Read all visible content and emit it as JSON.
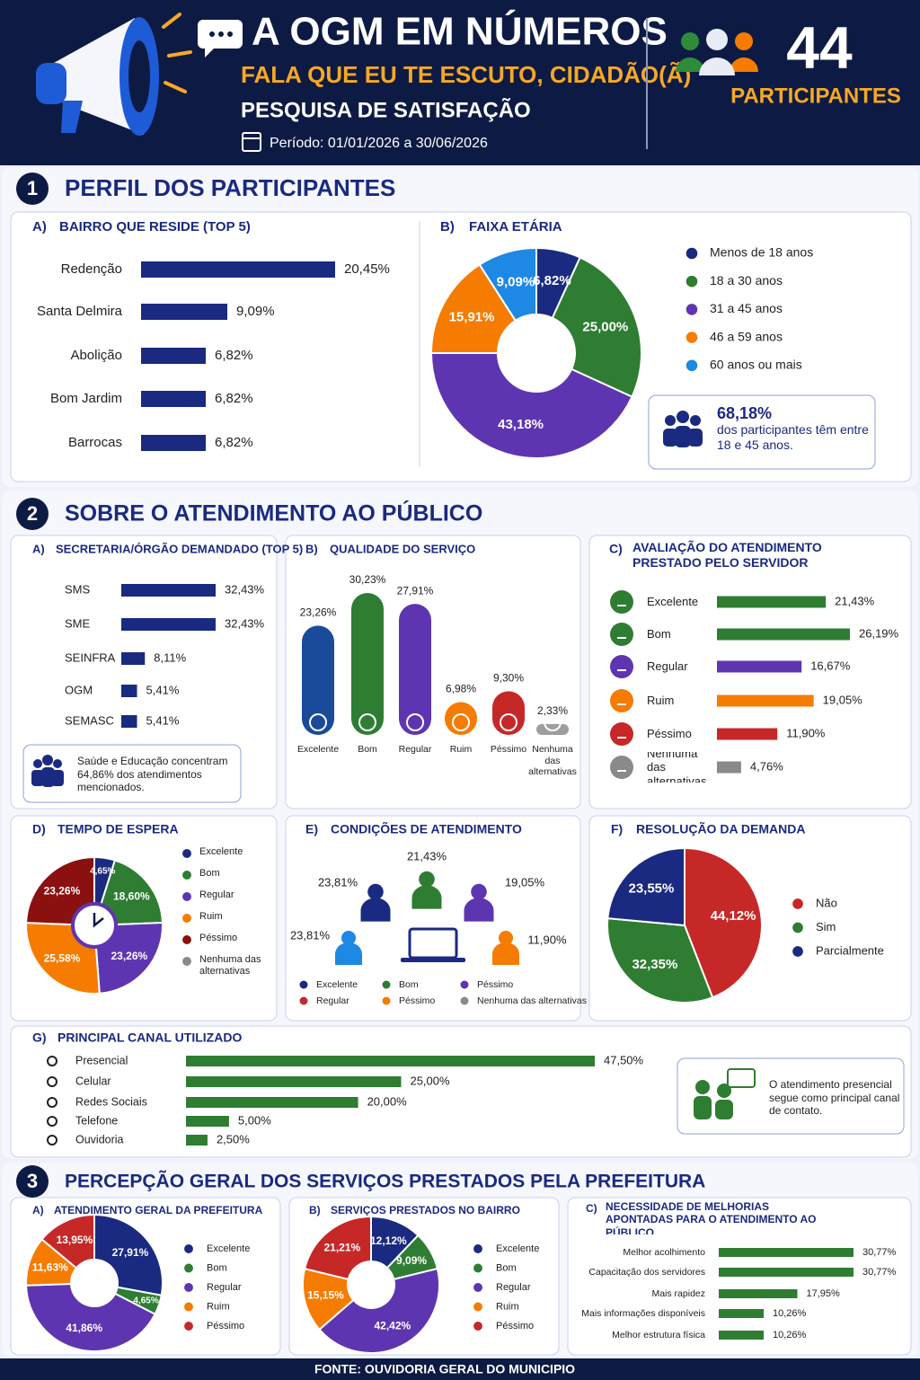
{
  "header": {
    "title": "A OGM EM NÚMEROS",
    "subtitle": "FALA QUE EU TE ESCUTO, CIDADÃO(Ã)",
    "survey": "PESQUISA DE SATISFAÇÃO",
    "period": "Período: 01/01/2026 a 30/06/2026",
    "participants": 44,
    "participants_label": "PARTICIPANTES"
  },
  "sections": [
    {
      "number": 1,
      "title": "PERFIL DOS PARTICIPANTES"
    },
    {
      "number": 2,
      "title": "SOBRE O ATENDIMENTO AO PÚBLICO"
    },
    {
      "number": 3,
      "title": "PERCEPÇÃO GERAL DOS SERVIÇOS PRESTADOS PELA PREFEITURA"
    }
  ],
  "chart_data": [
    {
      "type": "bar",
      "label": "A)",
      "title": "BAIRRO QUE RESIDE (TOP 5)",
      "categories": [
        "Redenção",
        "Santa Delmira",
        "Abolição",
        "Bom Jardim",
        "Barrocas"
      ],
      "values": [
        20.45,
        9.09,
        6.82,
        6.82,
        6.82
      ],
      "value_labels": [
        "20,45%",
        "9,09%",
        "6,82%",
        "6,82%",
        "6,82%"
      ],
      "color": "#1a2a80"
    },
    {
      "type": "pie",
      "label": "B)",
      "title": "FAIXA ETÁRIA",
      "categories": [
        "Menos de 18 anos",
        "18 a 30 anos",
        "31 a 45 anos",
        "46 a 59 anos",
        "60 anos ou mais"
      ],
      "values": [
        6.82,
        25.0,
        43.18,
        15.91,
        9.09
      ],
      "value_labels": [
        "6,82%",
        "25,00%",
        "43,18%",
        "15,91%",
        "9,09%"
      ],
      "colors": [
        "#1a2a80",
        "#2e7d32",
        "#5e35b1",
        "#f57c00",
        "#1e88e5"
      ],
      "note_highlight": "68,18%",
      "note": "dos participantes têm entre 18 e 45 anos."
    },
    {
      "type": "bar",
      "label": "A)",
      "title": "SECRETARIA/ÓRGÃO DEMANDADO (TOP 5)",
      "categories": [
        "SMS",
        "SME",
        "SEINFRA",
        "OGM",
        "SEMASC"
      ],
      "values": [
        32.43,
        32.43,
        8.11,
        5.41,
        5.41
      ],
      "value_labels": [
        "32,43%",
        "32,43%",
        "8,11%",
        "5,41%",
        "5,41%"
      ],
      "color": "#1a2a80",
      "note": "Saúde e Educação concentram 64,86% dos atendimentos mencionados."
    },
    {
      "type": "pill_bar",
      "label": "B)",
      "title": "QUALIDADE DO SERVIÇO",
      "categories": [
        "Excelente",
        "Bom",
        "Regular",
        "Ruim",
        "Péssimo",
        "Nenhuma das alternativas"
      ],
      "values": [
        23.26,
        30.23,
        27.91,
        6.98,
        9.3,
        2.33
      ],
      "value_labels": [
        "23,26%",
        "30,23%",
        "27,91%",
        "6,98%",
        "9,30%",
        "2,33%"
      ],
      "colors": [
        "#1a4a9a",
        "#2e7d32",
        "#5e35b1",
        "#f57c00",
        "#c62828",
        "#9e9e9e"
      ]
    },
    {
      "type": "bar",
      "label": "C)",
      "title": "AVALIAÇÃO DO ATENDIMENTO PRESTADO PELO SERVIDOR",
      "categories": [
        "Excelente",
        "Bom",
        "Regular",
        "Ruim",
        "Péssimo",
        "Nenhuma das alternativas"
      ],
      "values": [
        21.43,
        26.19,
        16.67,
        19.05,
        11.9,
        4.76
      ],
      "value_labels": [
        "21,43%",
        "26,19%",
        "16,67%",
        "19,05%",
        "11,90%",
        "4,76%"
      ],
      "colors": [
        "#2e7d32",
        "#2e7d32",
        "#5e35b1",
        "#f57c00",
        "#c62828",
        "#8a8a8a"
      ]
    },
    {
      "type": "pie",
      "label": "D)",
      "title": "TEMPO DE ESPERA",
      "categories": [
        "Excelente",
        "Bom",
        "Regular",
        "Ruim",
        "Péssimo",
        "Nenhuma das alternativas"
      ],
      "values": [
        4.65,
        18.6,
        23.26,
        25.58,
        23.26,
        null
      ],
      "value_labels": [
        "4,65%",
        "18,60%",
        "23,26%",
        "25,58%",
        "23,26%",
        null
      ],
      "colors": [
        "#1a2a80",
        "#2e7d32",
        "#5e35b1",
        "#f57c00",
        "#8b1010",
        "#8a8a8a"
      ]
    },
    {
      "type": "pictogram",
      "label": "E)",
      "title": "CONDIÇÕES DE ATENDIMENTO",
      "values": [
        23.81,
        23.81,
        21.43,
        19.05,
        11.9
      ],
      "value_labels": [
        "23,81%",
        "23,81%",
        "21,43%",
        "19,05%",
        "11,90%"
      ],
      "colors": [
        "#1e88e5",
        "#1a2a80",
        "#2e7d32",
        "#5e35b1",
        "#f57c00"
      ],
      "legend": [
        {
          "name": "Excelente",
          "color": "#1a2a80"
        },
        {
          "name": "Bom",
          "color": "#2e7d32"
        },
        {
          "name": "Péssimo",
          "color": "#5e35b1"
        },
        {
          "name": "Regular",
          "color": "#c62828"
        },
        {
          "name": "Péssimo",
          "color": "#f57c00"
        },
        {
          "name": "Nenhuma das alternativas",
          "color": "#8a8a8a"
        }
      ]
    },
    {
      "type": "pie",
      "label": "F)",
      "title": "RESOLUÇÃO DA DEMANDA",
      "categories": [
        "Não",
        "Sim",
        "Parcialmente"
      ],
      "values": [
        44.12,
        32.35,
        23.55
      ],
      "value_labels": [
        "44,12%",
        "32,35%",
        "23,55%"
      ],
      "colors": [
        "#c62828",
        "#2e7d32",
        "#1a2a80"
      ]
    },
    {
      "type": "bar",
      "label": "G)",
      "title": "PRINCIPAL CANAL UTILIZADO",
      "categories": [
        "Presencial",
        "Celular",
        "Redes Sociais",
        "Telefone",
        "Ouvidoria"
      ],
      "values": [
        47.5,
        25.0,
        20.0,
        5.0,
        2.5
      ],
      "value_labels": [
        "47,50%",
        "25,00%",
        "20,00%",
        "5,00%",
        "2,50%"
      ],
      "color": "#2e7d32",
      "note": "O atendimento presencial segue como principal canal de contato."
    },
    {
      "type": "pie",
      "label": "A)",
      "title": "ATENDIMENTO GERAL DA PREFEITURA",
      "categories": [
        "Excelente",
        "Bom",
        "Regular",
        "Ruim",
        "Péssimo"
      ],
      "values": [
        27.91,
        4.65,
        41.86,
        11.63,
        13.95
      ],
      "value_labels": [
        "27,91%",
        "4,65%",
        "41,86%",
        "11,63%",
        "13,95%"
      ],
      "colors": [
        "#1a2a80",
        "#2e7d32",
        "#5e35b1",
        "#f57c00",
        "#c62828"
      ]
    },
    {
      "type": "pie",
      "label": "B)",
      "title": "SERVIÇOS PRESTADOS NO BAIRRO",
      "categories": [
        "Excelente",
        "Bom",
        "Regular",
        "Ruim",
        "Péssimo"
      ],
      "values": [
        12.12,
        9.09,
        42.42,
        15.15,
        21.21
      ],
      "value_labels": [
        "12,12%",
        "9,09%",
        "42,42%",
        "15,15%",
        "21,21%"
      ],
      "colors": [
        "#1a2a80",
        "#2e7d32",
        "#5e35b1",
        "#f57c00",
        "#c62828"
      ]
    },
    {
      "type": "bar",
      "label": "C)",
      "title": "NECESSIDADE DE MELHORIAS APONTADAS PARA O ATENDIMENTO AO PÚBLICO",
      "categories": [
        "Melhor acolhimento",
        "Capacitação dos servidores",
        "Mais rapidez",
        "Mais informações disponíveis",
        "Melhor estrutura física"
      ],
      "values": [
        30.77,
        30.77,
        17.95,
        10.26,
        10.26
      ],
      "value_labels": [
        "30,77%",
        "30,77%",
        "17,95%",
        "10,26%",
        "10,26%"
      ],
      "color": "#2e7d32"
    }
  ],
  "footer": "FONTE: OUVIDORIA GERAL DO MUNICIPIO"
}
